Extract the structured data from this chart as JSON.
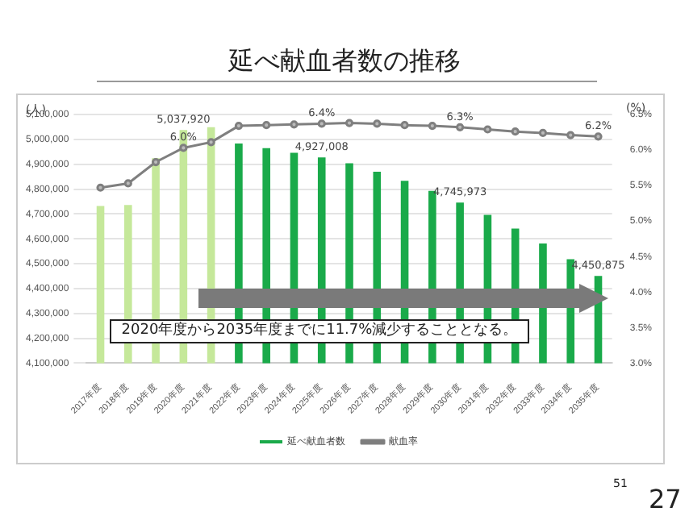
{
  "chart_data": {
    "type": "bar",
    "title": "延べ献血者数の推移",
    "ylabel": "(人)",
    "y2label": "(%)",
    "categories": [
      "2017年度",
      "2018年度",
      "2019年度",
      "2020年度",
      "2021年度",
      "2022年度",
      "2023年度",
      "2024年度",
      "2025年度",
      "2026年度",
      "2027年度",
      "2028年度",
      "2029年度",
      "2030年度",
      "2031年度",
      "2032年度",
      "2033年度",
      "2034年度",
      "2035年度"
    ],
    "series": [
      {
        "name": "延べ献血者数",
        "color": "#1aaa4a",
        "colors": [
          "#c5e89a",
          "#c5e89a",
          "#c5e89a",
          "#c5e89a",
          "#c5e89a",
          "#1aaa4a",
          "#1aaa4a",
          "#1aaa4a",
          "#1aaa4a",
          "#1aaa4a",
          "#1aaa4a",
          "#1aaa4a",
          "#1aaa4a",
          "#1aaa4a",
          "#1aaa4a",
          "#1aaa4a",
          "#1aaa4a",
          "#1aaa4a",
          "#1aaa4a"
        ],
        "values": [
          4732000,
          4736000,
          4924000,
          5037920,
          5049000,
          4983000,
          4965000,
          4946000,
          4927008,
          4904000,
          4870000,
          4833000,
          4793000,
          4745973,
          4696000,
          4641000,
          4581000,
          4518000,
          4450875
        ],
        "value_labels": [
          null,
          null,
          null,
          "5,037,920",
          null,
          null,
          null,
          null,
          "4,927,008",
          null,
          null,
          null,
          null,
          "4,745,973",
          null,
          null,
          null,
          null,
          "4,450,875"
        ]
      },
      {
        "type": "line",
        "name": "献血率",
        "color": "#7f7f7f",
        "axis": "y2",
        "marker": "circle",
        "values": [
          5.47,
          5.53,
          5.83,
          6.03,
          6.11,
          6.34,
          6.35,
          6.36,
          6.37,
          6.38,
          6.37,
          6.35,
          6.34,
          6.32,
          6.29,
          6.26,
          6.24,
          6.21,
          6.19
        ],
        "value_labels": [
          null,
          null,
          null,
          "6.0%",
          null,
          null,
          null,
          null,
          "6.4%",
          null,
          null,
          null,
          null,
          "6.3%",
          null,
          null,
          null,
          null,
          "6.2%"
        ]
      }
    ],
    "ylim": [
      4100000,
      5100000
    ],
    "yticks": [
      {
        "value": 4100000,
        "label": "4,100,000"
      },
      {
        "value": 4200000,
        "label": "4,200,000"
      },
      {
        "value": 4300000,
        "label": "4,300,000"
      },
      {
        "value": 4400000,
        "label": "4,400,000"
      },
      {
        "value": 4500000,
        "label": "4,500,000"
      },
      {
        "value": 4600000,
        "label": "4,600,000"
      },
      {
        "value": 4700000,
        "label": "4,700,000"
      },
      {
        "value": 4800000,
        "label": "4,800,000"
      },
      {
        "value": 4900000,
        "label": "4,900,000"
      },
      {
        "value": 5000000,
        "label": "5,000,000"
      },
      {
        "value": 5100000,
        "label": "5,100,000"
      }
    ],
    "y2lim": [
      3.0,
      6.5
    ],
    "y2ticks": [
      {
        "value": 3.0,
        "label": "3.0%"
      },
      {
        "value": 3.5,
        "label": "3.5%"
      },
      {
        "value": 4.0,
        "label": "4.0%"
      },
      {
        "value": 4.5,
        "label": "4.5%"
      },
      {
        "value": 5.0,
        "label": "5.0%"
      },
      {
        "value": 5.5,
        "label": "5.5%"
      },
      {
        "value": 6.0,
        "label": "6.0%"
      },
      {
        "value": 6.5,
        "label": "6.5%"
      }
    ],
    "grid": "y",
    "legend": "bottom",
    "annotations": [
      "2020年度から2035年度までに11.7%減少することとなる。",
      "51",
      "27"
    ]
  }
}
